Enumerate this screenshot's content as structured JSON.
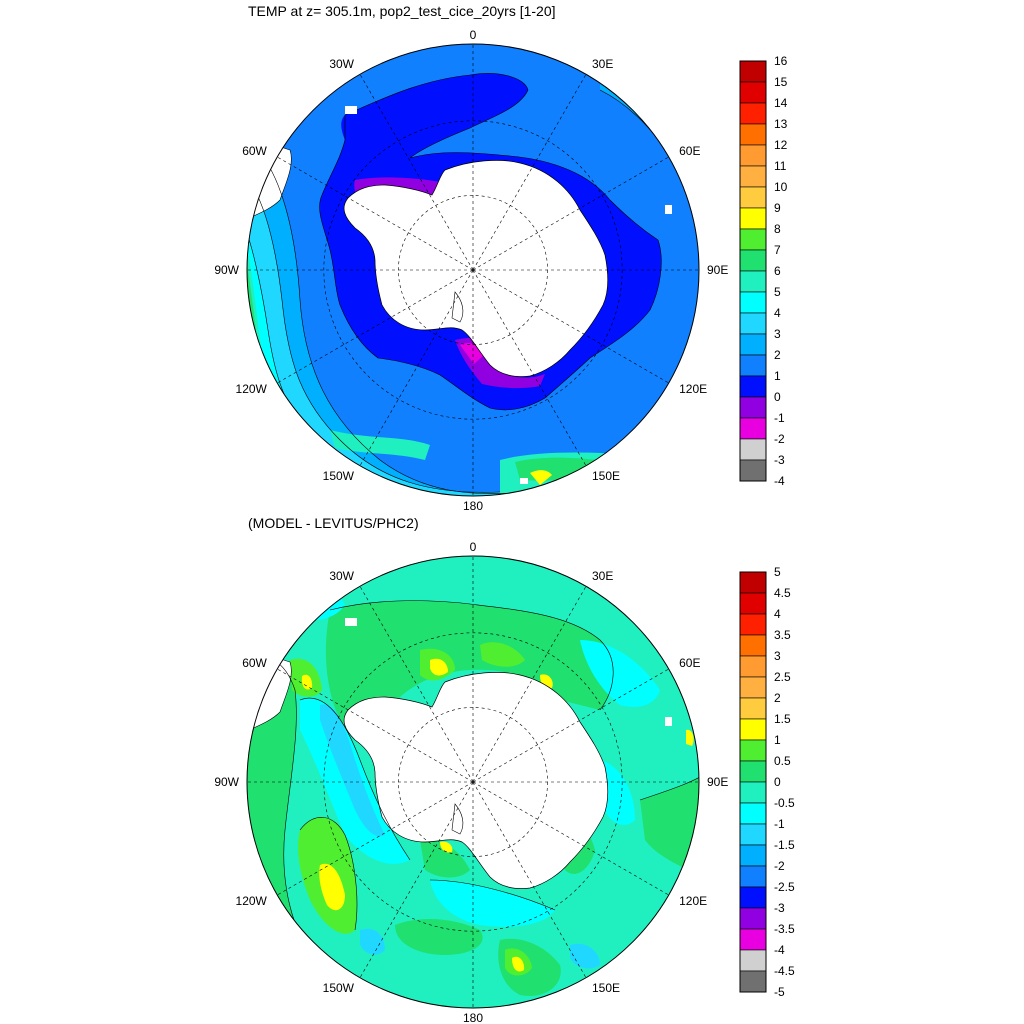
{
  "top": {
    "title": "TEMP at z= 305.1m, pop2_test_cice_20yrs [1-20]",
    "colorbar": {
      "labels": [
        "16",
        "15",
        "14",
        "13",
        "12",
        "11",
        "10",
        "9",
        "8",
        "7",
        "6",
        "5",
        "4",
        "3",
        "2",
        "1",
        "0",
        "-1",
        "-2",
        "-3",
        "-4"
      ],
      "colors": [
        "#c00000",
        "#e00000",
        "#ff2000",
        "#ff7000",
        "#ff9b30",
        "#ffb040",
        "#ffcc40",
        "#ffff00",
        "#50ee30",
        "#20e070",
        "#20f0c0",
        "#00ffff",
        "#20d8ff",
        "#00b0ff",
        "#1080ff",
        "#0010ff",
        "#9000e0",
        "#e800e0",
        "#d0d0d0",
        "#707070"
      ]
    }
  },
  "bottom": {
    "title": "(MODEL - LEVITUS/PHC2)",
    "colorbar": {
      "labels": [
        "5",
        "4.5",
        "4",
        "3.5",
        "3",
        "2.5",
        "2",
        "1.5",
        "1",
        "0.5",
        "0",
        "-0.5",
        "-1",
        "-1.5",
        "-2",
        "-2.5",
        "-3",
        "-3.5",
        "-4",
        "-4.5",
        "-5"
      ],
      "colors": [
        "#c00000",
        "#e00000",
        "#ff2000",
        "#ff7000",
        "#ff9b30",
        "#ffb040",
        "#ffcc40",
        "#ffff00",
        "#50ee30",
        "#20e070",
        "#20f0c0",
        "#00ffff",
        "#20d8ff",
        "#00b0ff",
        "#1080ff",
        "#0010ff",
        "#9000e0",
        "#e800e0",
        "#d0d0d0",
        "#707070"
      ]
    }
  },
  "lon_labels": [
    "0",
    "30E",
    "60E",
    "90E",
    "120E",
    "150E",
    "180",
    "150W",
    "120W",
    "90W",
    "60W",
    "30W"
  ]
}
